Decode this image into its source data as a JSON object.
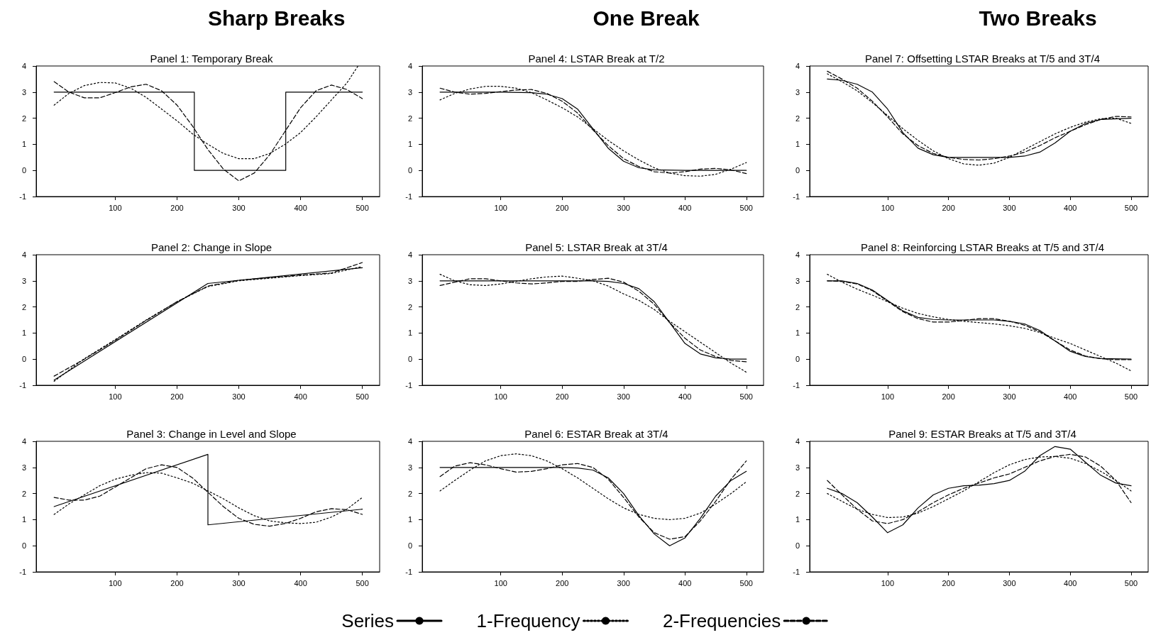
{
  "chart_data": [
    {
      "type": "line",
      "title": "Panel 1: Temporary Break",
      "annotations": [
        "Sharp Breaks"
      ],
      "xlim": [
        -28,
        528
      ],
      "xticks": [
        100,
        200,
        300,
        400,
        500
      ],
      "ylim": [
        -1,
        4
      ],
      "yticks": [
        -1,
        0,
        1,
        2,
        3,
        4
      ],
      "marker": "none",
      "series": [
        {
          "color": "#000000",
          "line_style": "solid",
          "x": [
            1,
            228,
            228,
            376,
            376,
            500
          ],
          "values": [
            3,
            3,
            0,
            0,
            3,
            3
          ]
        },
        {
          "color": "#000000",
          "line_style": "dotted",
          "x": [
            1,
            25,
            50,
            75,
            100,
            125,
            150,
            175,
            200,
            225,
            250,
            275,
            300,
            325,
            350,
            375,
            400,
            425,
            450,
            475,
            493
          ],
          "values": [
            2.5,
            2.95,
            3.25,
            3.37,
            3.35,
            3.15,
            2.8,
            2.35,
            1.9,
            1.4,
            1.0,
            0.65,
            0.45,
            0.45,
            0.65,
            1.0,
            1.45,
            2.05,
            2.7,
            3.35,
            4.0
          ]
        },
        {
          "color": "#000000",
          "line_style": "dashed",
          "x": [
            1,
            25,
            50,
            75,
            100,
            125,
            150,
            175,
            200,
            225,
            250,
            275,
            300,
            325,
            350,
            375,
            400,
            425,
            450,
            475,
            500
          ],
          "values": [
            3.4,
            3.0,
            2.78,
            2.78,
            2.98,
            3.2,
            3.3,
            3.05,
            2.5,
            1.7,
            0.8,
            0.05,
            -0.4,
            -0.1,
            0.6,
            1.5,
            2.4,
            3.05,
            3.27,
            3.1,
            2.75
          ]
        }
      ]
    },
    {
      "type": "line",
      "title": "Panel 2: Change in Slope",
      "xlim": [
        -28,
        528
      ],
      "xticks": [
        100,
        200,
        300,
        400,
        500
      ],
      "ylim": [
        -1,
        4
      ],
      "yticks": [
        -1,
        0,
        1,
        2,
        3,
        4
      ],
      "marker": "none",
      "series": [
        {
          "color": "#000000",
          "line_style": "solid",
          "x": [
            1,
            250,
            500
          ],
          "values": [
            -0.8,
            2.9,
            3.5
          ]
        },
        {
          "color": "#000000",
          "line_style": "dotted",
          "x": [
            1,
            50,
            100,
            150,
            200,
            250,
            300,
            350,
            400,
            450,
            500
          ],
          "values": [
            -0.85,
            0.02,
            0.75,
            1.5,
            2.2,
            2.78,
            3.0,
            3.1,
            3.2,
            3.28,
            3.55
          ]
        },
        {
          "color": "#000000",
          "line_style": "dashed",
          "x": [
            1,
            50,
            100,
            150,
            200,
            250,
            300,
            350,
            400,
            450,
            500
          ],
          "values": [
            -0.65,
            0.0,
            0.72,
            1.48,
            2.2,
            2.8,
            3.02,
            3.12,
            3.22,
            3.3,
            3.7
          ]
        }
      ]
    },
    {
      "type": "line",
      "title": "Panel 3: Change in Level and Slope",
      "xlim": [
        -28,
        528
      ],
      "xticks": [
        100,
        200,
        300,
        400,
        500
      ],
      "ylim": [
        -1,
        4
      ],
      "yticks": [
        -1,
        0,
        1,
        2,
        3,
        4
      ],
      "marker": "none",
      "series": [
        {
          "color": "#000000",
          "line_style": "solid",
          "x": [
            1,
            250,
            250,
            500
          ],
          "values": [
            1.5,
            3.5,
            0.8,
            1.4
          ]
        },
        {
          "color": "#000000",
          "line_style": "dotted",
          "x": [
            1,
            25,
            50,
            75,
            100,
            125,
            150,
            175,
            200,
            225,
            250,
            275,
            300,
            325,
            350,
            375,
            400,
            425,
            450,
            475,
            500
          ],
          "values": [
            1.2,
            1.6,
            1.95,
            2.3,
            2.55,
            2.7,
            2.8,
            2.78,
            2.6,
            2.4,
            2.1,
            1.8,
            1.45,
            1.15,
            0.95,
            0.88,
            0.85,
            0.9,
            1.1,
            1.4,
            1.85
          ]
        },
        {
          "color": "#000000",
          "line_style": "dashed",
          "x": [
            1,
            25,
            50,
            75,
            100,
            125,
            150,
            175,
            200,
            225,
            250,
            275,
            300,
            325,
            350,
            375,
            400,
            425,
            450,
            475,
            500
          ],
          "values": [
            1.85,
            1.75,
            1.75,
            1.9,
            2.25,
            2.6,
            2.95,
            3.1,
            3.0,
            2.6,
            2.05,
            1.5,
            1.05,
            0.82,
            0.75,
            0.85,
            1.05,
            1.3,
            1.42,
            1.38,
            1.2
          ]
        }
      ]
    },
    {
      "type": "line",
      "title": "Panel 4: LSTAR Break at T/2",
      "annotations": [
        "One Break"
      ],
      "xlim": [
        -28,
        528
      ],
      "xticks": [
        100,
        200,
        300,
        400,
        500
      ],
      "ylim": [
        -1,
        4
      ],
      "yticks": [
        -1,
        0,
        1,
        2,
        3,
        4
      ],
      "marker": "none",
      "series": [
        {
          "color": "#000000",
          "line_style": "solid",
          "x": [
            1,
            100,
            150,
            175,
            200,
            225,
            250,
            275,
            300,
            325,
            350,
            400,
            500
          ],
          "values": [
            3.0,
            3.0,
            2.98,
            2.92,
            2.75,
            2.35,
            1.6,
            0.85,
            0.35,
            0.1,
            0.02,
            0.0,
            0.0
          ]
        },
        {
          "color": "#000000",
          "line_style": "dotted",
          "x": [
            1,
            25,
            50,
            75,
            100,
            125,
            150,
            175,
            200,
            225,
            250,
            275,
            300,
            325,
            350,
            375,
            400,
            425,
            450,
            475,
            500
          ],
          "values": [
            2.7,
            2.95,
            3.12,
            3.22,
            3.22,
            3.15,
            2.98,
            2.7,
            2.4,
            2.05,
            1.6,
            1.15,
            0.75,
            0.4,
            0.1,
            -0.1,
            -0.2,
            -0.22,
            -0.15,
            0.05,
            0.3
          ]
        },
        {
          "color": "#000000",
          "line_style": "dashed",
          "x": [
            1,
            25,
            50,
            75,
            100,
            125,
            150,
            175,
            200,
            225,
            250,
            275,
            300,
            325,
            350,
            375,
            400,
            425,
            450,
            475,
            500
          ],
          "values": [
            3.15,
            3.0,
            2.92,
            2.95,
            3.02,
            3.08,
            3.1,
            2.95,
            2.65,
            2.2,
            1.55,
            0.95,
            0.45,
            0.15,
            -0.05,
            -0.1,
            -0.05,
            0.05,
            0.08,
            0.02,
            -0.12
          ]
        }
      ]
    },
    {
      "type": "line",
      "title": "Panel 5: LSTAR Break at 3T/4",
      "xlim": [
        -28,
        528
      ],
      "xticks": [
        100,
        200,
        300,
        400,
        500
      ],
      "ylim": [
        -1,
        4
      ],
      "yticks": [
        -1,
        0,
        1,
        2,
        3,
        4
      ],
      "marker": "none",
      "series": [
        {
          "color": "#000000",
          "line_style": "solid",
          "x": [
            1,
            250,
            275,
            300,
            325,
            350,
            375,
            400,
            425,
            450,
            475,
            500
          ],
          "values": [
            3.0,
            3.0,
            2.98,
            2.9,
            2.7,
            2.2,
            1.4,
            0.6,
            0.2,
            0.05,
            0.0,
            0.0
          ]
        },
        {
          "color": "#000000",
          "line_style": "dotted",
          "x": [
            1,
            25,
            50,
            75,
            100,
            125,
            150,
            175,
            200,
            225,
            250,
            275,
            300,
            325,
            350,
            375,
            400,
            425,
            450,
            475,
            500
          ],
          "values": [
            3.25,
            3.0,
            2.85,
            2.82,
            2.88,
            2.98,
            3.08,
            3.15,
            3.18,
            3.1,
            3.0,
            2.8,
            2.5,
            2.25,
            1.9,
            1.45,
            1.05,
            0.65,
            0.25,
            -0.15,
            -0.5
          ]
        },
        {
          "color": "#000000",
          "line_style": "dashed",
          "x": [
            1,
            25,
            50,
            75,
            100,
            125,
            150,
            175,
            200,
            225,
            250,
            275,
            300,
            325,
            350,
            375,
            400,
            425,
            450,
            475,
            500
          ],
          "values": [
            2.82,
            2.95,
            3.08,
            3.08,
            3.0,
            2.92,
            2.88,
            2.92,
            2.98,
            2.98,
            3.05,
            3.1,
            2.95,
            2.6,
            2.1,
            1.4,
            0.8,
            0.35,
            0.1,
            -0.05,
            -0.1
          ]
        }
      ]
    },
    {
      "type": "line",
      "title": "Panel 6: ESTAR Break at 3T/4",
      "legend": "bottom",
      "xlim": [
        -28,
        528
      ],
      "xticks": [
        100,
        200,
        300,
        400,
        500
      ],
      "ylim": [
        -1,
        4
      ],
      "yticks": [
        -1,
        0,
        1,
        2,
        3,
        4
      ],
      "marker": "none",
      "series": [
        {
          "name": "Series",
          "color": "#000000",
          "line_style": "solid",
          "x": [
            1,
            200,
            225,
            250,
            275,
            300,
            325,
            350,
            375,
            400,
            425,
            450,
            475,
            500
          ],
          "values": [
            3.0,
            3.0,
            2.98,
            2.9,
            2.6,
            2.0,
            1.15,
            0.45,
            0.0,
            0.3,
            1.05,
            1.9,
            2.5,
            2.85
          ]
        },
        {
          "name": "1-Frequency",
          "color": "#000000",
          "line_style": "dotted",
          "x": [
            1,
            25,
            50,
            75,
            100,
            125,
            150,
            175,
            200,
            225,
            250,
            275,
            300,
            325,
            350,
            375,
            400,
            425,
            450,
            475,
            500
          ],
          "values": [
            2.1,
            2.5,
            2.9,
            3.25,
            3.45,
            3.52,
            3.45,
            3.25,
            2.95,
            2.6,
            2.2,
            1.8,
            1.45,
            1.2,
            1.05,
            1.0,
            1.05,
            1.25,
            1.6,
            2.0,
            2.45
          ]
        },
        {
          "name": "2-Frequencies",
          "color": "#000000",
          "line_style": "dashed",
          "x": [
            1,
            25,
            50,
            75,
            100,
            125,
            150,
            175,
            200,
            225,
            250,
            275,
            300,
            325,
            350,
            375,
            400,
            425,
            450,
            475,
            500
          ],
          "values": [
            2.65,
            3.05,
            3.18,
            3.1,
            2.95,
            2.82,
            2.85,
            2.95,
            3.1,
            3.15,
            3.0,
            2.55,
            1.85,
            1.1,
            0.5,
            0.25,
            0.35,
            0.95,
            1.7,
            2.55,
            3.25
          ]
        }
      ]
    },
    {
      "type": "line",
      "title": "Panel 7: Offsetting LSTAR Breaks at T/5 and 3T/4",
      "annotations": [
        "Two Breaks"
      ],
      "xlim": [
        -28,
        528
      ],
      "xticks": [
        100,
        200,
        300,
        400,
        500
      ],
      "ylim": [
        -1,
        4
      ],
      "yticks": [
        -1,
        0,
        1,
        2,
        3,
        4
      ],
      "marker": "none",
      "series": [
        {
          "color": "#000000",
          "line_style": "solid",
          "x": [
            1,
            25,
            50,
            75,
            100,
            125,
            150,
            175,
            200,
            300,
            325,
            350,
            375,
            400,
            425,
            450,
            500
          ],
          "values": [
            3.5,
            3.45,
            3.3,
            3.0,
            2.35,
            1.45,
            0.85,
            0.6,
            0.5,
            0.5,
            0.55,
            0.7,
            1.05,
            1.5,
            1.8,
            1.95,
            2.0
          ]
        },
        {
          "color": "#000000",
          "line_style": "dotted",
          "x": [
            1,
            25,
            50,
            75,
            100,
            125,
            150,
            175,
            200,
            225,
            250,
            275,
            300,
            325,
            350,
            375,
            400,
            425,
            450,
            475,
            500
          ],
          "values": [
            3.7,
            3.4,
            3.05,
            2.6,
            2.1,
            1.6,
            1.15,
            0.75,
            0.45,
            0.25,
            0.2,
            0.28,
            0.5,
            0.8,
            1.1,
            1.4,
            1.65,
            1.85,
            1.98,
            2.0,
            1.8
          ]
        },
        {
          "color": "#000000",
          "line_style": "dashed",
          "x": [
            1,
            25,
            50,
            75,
            100,
            125,
            150,
            175,
            200,
            225,
            250,
            275,
            300,
            325,
            350,
            375,
            400,
            425,
            450,
            475,
            500
          ],
          "values": [
            3.8,
            3.5,
            3.15,
            2.65,
            2.05,
            1.4,
            0.95,
            0.65,
            0.5,
            0.42,
            0.4,
            0.45,
            0.55,
            0.7,
            0.95,
            1.25,
            1.5,
            1.75,
            1.95,
            2.07,
            2.05
          ]
        }
      ]
    },
    {
      "type": "line",
      "title": "Panel 8: Reinforcing LSTAR Breaks at T/5 and 3T/4",
      "xlim": [
        -28,
        528
      ],
      "xticks": [
        100,
        200,
        300,
        400,
        500
      ],
      "ylim": [
        -1,
        4
      ],
      "yticks": [
        -1,
        0,
        1,
        2,
        3,
        4
      ],
      "marker": "none",
      "series": [
        {
          "color": "#000000",
          "line_style": "solid",
          "x": [
            1,
            25,
            50,
            75,
            100,
            125,
            150,
            175,
            200,
            275,
            300,
            325,
            350,
            375,
            400,
            425,
            450,
            500
          ],
          "values": [
            3.0,
            3.0,
            2.9,
            2.65,
            2.25,
            1.85,
            1.6,
            1.52,
            1.5,
            1.5,
            1.45,
            1.35,
            1.1,
            0.7,
            0.3,
            0.1,
            0.02,
            0.0
          ]
        },
        {
          "color": "#000000",
          "line_style": "dotted",
          "x": [
            1,
            25,
            50,
            75,
            100,
            125,
            150,
            175,
            200,
            225,
            250,
            275,
            300,
            325,
            350,
            375,
            400,
            425,
            450,
            475,
            500
          ],
          "values": [
            3.25,
            2.95,
            2.68,
            2.45,
            2.2,
            1.95,
            1.75,
            1.62,
            1.52,
            1.45,
            1.4,
            1.35,
            1.28,
            1.18,
            1.02,
            0.8,
            0.6,
            0.35,
            0.1,
            -0.15,
            -0.45
          ]
        },
        {
          "color": "#000000",
          "line_style": "dashed",
          "x": [
            1,
            25,
            50,
            75,
            100,
            125,
            150,
            175,
            200,
            225,
            250,
            275,
            300,
            325,
            350,
            375,
            400,
            425,
            450,
            475,
            500
          ],
          "values": [
            3.0,
            2.98,
            2.88,
            2.62,
            2.22,
            1.82,
            1.55,
            1.42,
            1.42,
            1.48,
            1.55,
            1.55,
            1.45,
            1.3,
            1.05,
            0.7,
            0.35,
            0.12,
            0.02,
            -0.02,
            -0.02
          ]
        }
      ]
    },
    {
      "type": "line",
      "title": "Panel 9: ESTAR Breaks at T/5 and 3T/4",
      "xlim": [
        -28,
        528
      ],
      "xticks": [
        100,
        200,
        300,
        400,
        500
      ],
      "ylim": [
        -1,
        4
      ],
      "yticks": [
        -1,
        0,
        1,
        2,
        3,
        4
      ],
      "marker": "none",
      "series": [
        {
          "color": "#000000",
          "line_style": "solid",
          "x": [
            1,
            25,
            50,
            75,
            100,
            125,
            150,
            175,
            200,
            225,
            250,
            275,
            300,
            325,
            350,
            375,
            400,
            425,
            450,
            475,
            500
          ],
          "values": [
            2.2,
            2.0,
            1.65,
            1.1,
            0.5,
            0.8,
            1.45,
            1.95,
            2.2,
            2.3,
            2.32,
            2.38,
            2.5,
            2.85,
            3.45,
            3.8,
            3.7,
            3.2,
            2.7,
            2.4,
            2.3
          ]
        },
        {
          "color": "#000000",
          "line_style": "dotted",
          "x": [
            1,
            25,
            50,
            75,
            100,
            125,
            150,
            175,
            200,
            225,
            250,
            275,
            300,
            325,
            350,
            375,
            400,
            425,
            450,
            475,
            500
          ],
          "values": [
            2.0,
            1.7,
            1.4,
            1.2,
            1.08,
            1.1,
            1.25,
            1.5,
            1.8,
            2.1,
            2.45,
            2.8,
            3.1,
            3.3,
            3.4,
            3.42,
            3.35,
            3.15,
            2.85,
            2.5,
            2.1
          ]
        },
        {
          "color": "#000000",
          "line_style": "dashed",
          "x": [
            1,
            25,
            50,
            75,
            100,
            125,
            150,
            175,
            200,
            225,
            250,
            275,
            300,
            325,
            350,
            375,
            400,
            425,
            450,
            475,
            500
          ],
          "values": [
            2.5,
            1.95,
            1.4,
            0.95,
            0.85,
            1.0,
            1.3,
            1.65,
            1.95,
            2.2,
            2.4,
            2.6,
            2.75,
            3.0,
            3.25,
            3.42,
            3.5,
            3.4,
            3.05,
            2.5,
            1.65
          ]
        }
      ]
    }
  ]
}
